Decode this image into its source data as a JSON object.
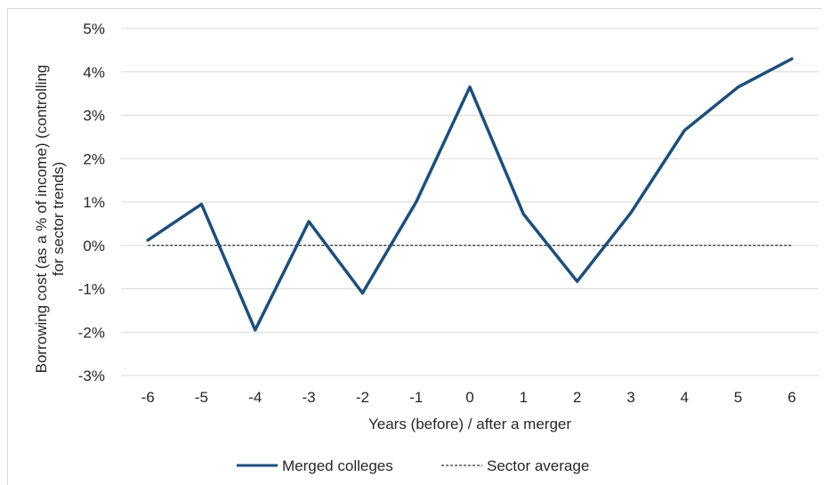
{
  "chart_data": {
    "type": "line",
    "title": "",
    "xlabel": "Years (before) / after a merger",
    "ylabel": [
      "Borrowing cost (as a % of income) (controlling",
      "for sector trends)"
    ],
    "x": [
      -6,
      -5,
      -4,
      -3,
      -2,
      -1,
      0,
      1,
      2,
      3,
      4,
      5,
      6
    ],
    "x_tick_labels": [
      "-6",
      "-5",
      "-4",
      "-3",
      "-2",
      "-1",
      "0",
      "1",
      "2",
      "3",
      "4",
      "5",
      "6"
    ],
    "ylim": [
      -3,
      5
    ],
    "y_ticks": [
      -3,
      -2,
      -1,
      0,
      1,
      2,
      3,
      4,
      5
    ],
    "y_tick_labels": [
      "-3%",
      "-2%",
      "-1%",
      "0%",
      "1%",
      "2%",
      "3%",
      "4%",
      "5%"
    ],
    "grid": "horizontal",
    "legend_position": "bottom",
    "series": [
      {
        "name": "Merged colleges",
        "style": "solid",
        "color": "#1f4e79",
        "values": [
          0.12,
          0.95,
          -1.95,
          0.55,
          -1.1,
          1.0,
          3.65,
          0.72,
          -0.83,
          0.75,
          2.65,
          3.65,
          4.3
        ]
      },
      {
        "name": "Sector average",
        "style": "dashed",
        "color": "#000000",
        "values": [
          0,
          0,
          0,
          0,
          0,
          0,
          0,
          0,
          0,
          0,
          0,
          0,
          0
        ]
      }
    ]
  }
}
